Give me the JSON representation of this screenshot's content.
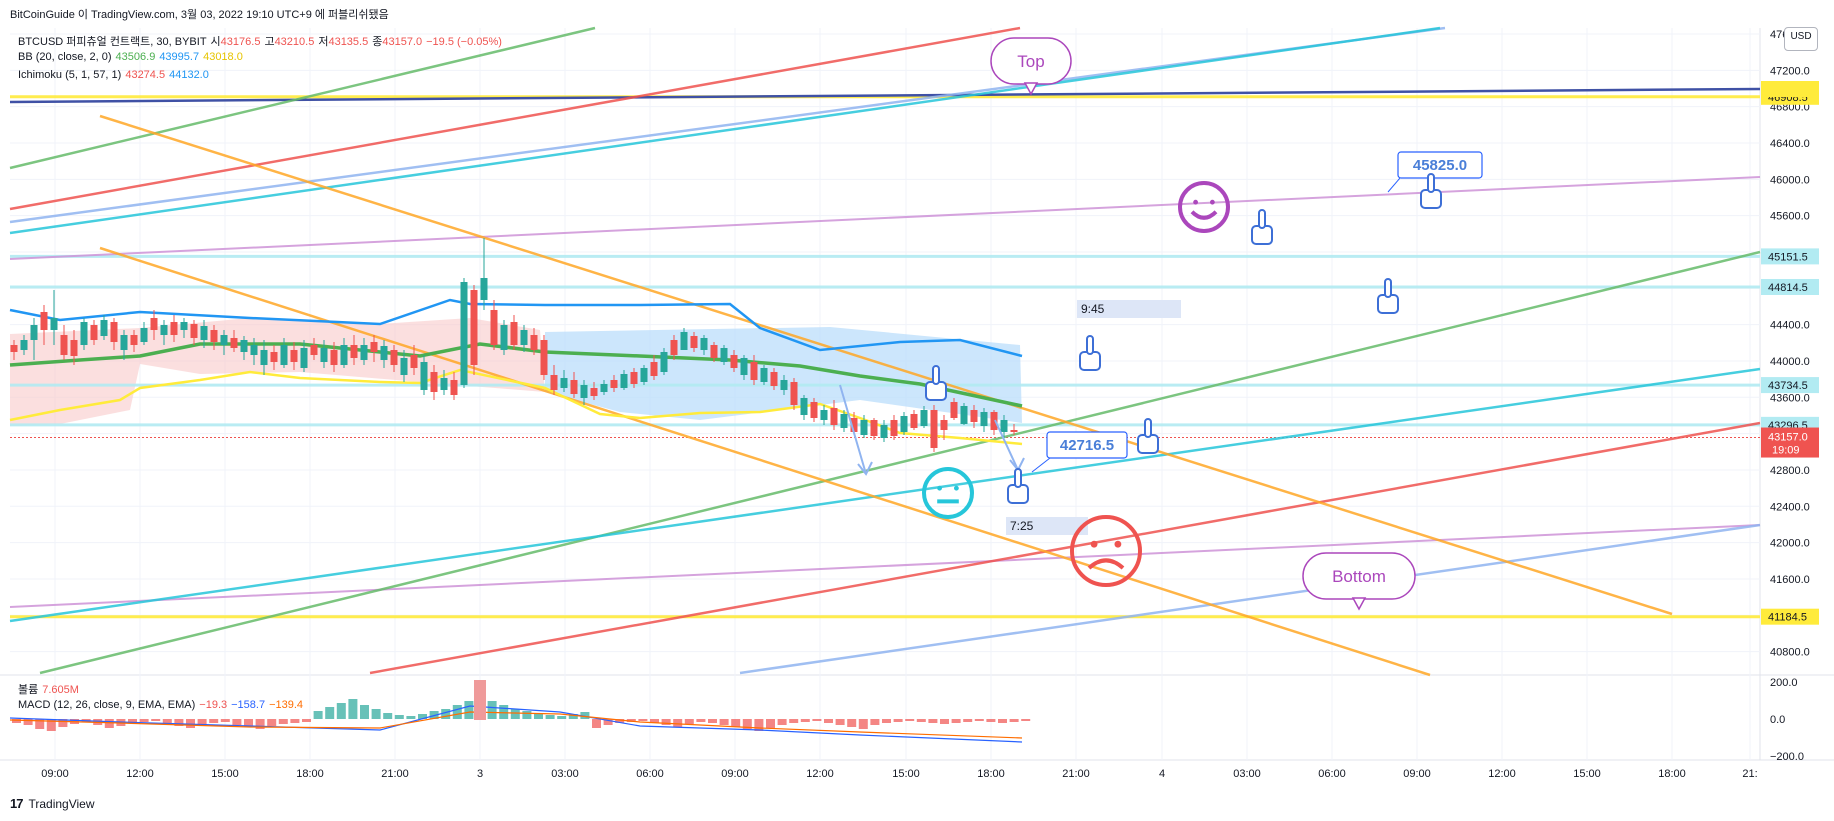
{
  "header": {
    "title": "BitCoinGuide 이 TradingView.com, 3월 03, 2022 19:10 UTC+9 에 퍼블리쉬됐음"
  },
  "legend": {
    "symbol_line": {
      "name": "BTCUSD 퍼피츄얼 컨트랙트, 30, BYBIT",
      "open_label": "시",
      "open": "43176.5",
      "high_label": "고",
      "high": "43210.5",
      "low_label": "저",
      "low": "43135.5",
      "close_label": "종",
      "close": "43157.0",
      "change": "−19.5 (−0.05%)"
    },
    "bb": {
      "name": "BB (20, close, 2, 0)",
      "basis": "43506.9",
      "upper": "43995.7",
      "lower": "43018.0"
    },
    "ichimoku": {
      "name": "Ichimoku (5, 1, 57, 1)",
      "v1": "43274.5",
      "v2": "44132.0"
    },
    "volume": {
      "name": "볼륨",
      "value": "7.605M"
    },
    "macd": {
      "name": "MACD (12, 26, close, 9, EMA, EMA)",
      "hist": "−19.3",
      "macd": "−158.7",
      "signal": "−139.4"
    }
  },
  "currency": "USD",
  "footer": {
    "brand": "TradingView"
  },
  "colors": {
    "up": "#26a69a",
    "down": "#ef5350",
    "bb_basis": "#4caf50",
    "bb_upper": "#2196f3",
    "bb_lower": "#ffeb3b",
    "orange": "#ffa726",
    "green": "#66bb6a",
    "red": "#ef5350",
    "teal": "#26c6da",
    "blue": "#90b4f0",
    "purple": "#ce93d8",
    "yellow_line": "#ffeb3b",
    "navy": "#3f51a5",
    "speech": "#ab47bc"
  },
  "chart_data": {
    "type": "candlestick",
    "ylim": [
      40400,
      47600
    ],
    "y_ticks": [
      "47600.0",
      "47200.0",
      "46800.0",
      "46400.0",
      "46000.0",
      "45600.0",
      "45200.0",
      "44800.0",
      "44400.0",
      "44000.0",
      "43600.0",
      "43200.0",
      "42800.0",
      "42400.0",
      "42000.0",
      "41600.0",
      "41200.0",
      "40800.0"
    ],
    "x_ticks": [
      "09:00",
      "12:00",
      "15:00",
      "18:00",
      "21:00",
      "3",
      "03:00",
      "06:00",
      "09:00",
      "12:00",
      "15:00",
      "18:00",
      "21:00",
      "4",
      "03:00",
      "06:00",
      "09:00",
      "12:00",
      "15:00",
      "18:00",
      "21:"
    ],
    "price_labels": [
      {
        "value": 46908.5,
        "text": "46908.5",
        "color": "#ffeb3b"
      },
      {
        "value": 45151.5,
        "text": "45151.5",
        "color": "#b2ebf2"
      },
      {
        "value": 44814.5,
        "text": "44814.5",
        "color": "#b2ebf2"
      },
      {
        "value": 43734.5,
        "text": "43734.5",
        "color": "#b2ebf2"
      },
      {
        "value": 43296.5,
        "text": "43296.5",
        "color": "#b2ebf2"
      },
      {
        "value": 41184.5,
        "text": "41184.5",
        "color": "#ffeb3b"
      }
    ],
    "last_price": {
      "value": 43157.0,
      "text": "43157.0",
      "time": "19:09"
    },
    "macd_ticks": [
      "200.0",
      "0.0",
      "−200.0"
    ],
    "annotations": {
      "callout_top": "Top",
      "callout_bottom": "Bottom",
      "price_note_high": "45825.0",
      "price_note_low": "42716.5",
      "time_note_1": "9:45",
      "time_note_2": "7:25"
    }
  }
}
